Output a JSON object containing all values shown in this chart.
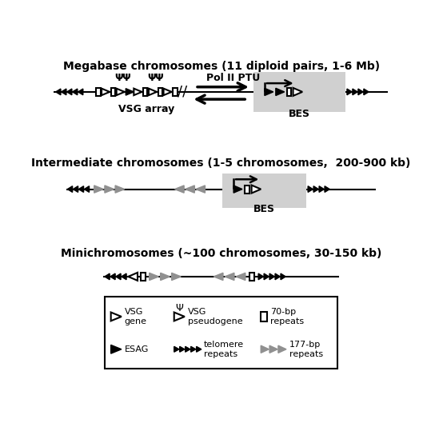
{
  "title1": "Megabase chromosomes (11 diploid pairs, 1-6 Mb)",
  "title2": "Intermediate chromosomes (1-5 chromosomes,  200-900 kb)",
  "title3": "Minichromosomes (~100 chromosomes, 30-150 kb)",
  "bg_color": "#ffffff",
  "arrow_color": "#000000",
  "gray_arrow_color": "#909090",
  "bes_bg": "#d0d0d0"
}
